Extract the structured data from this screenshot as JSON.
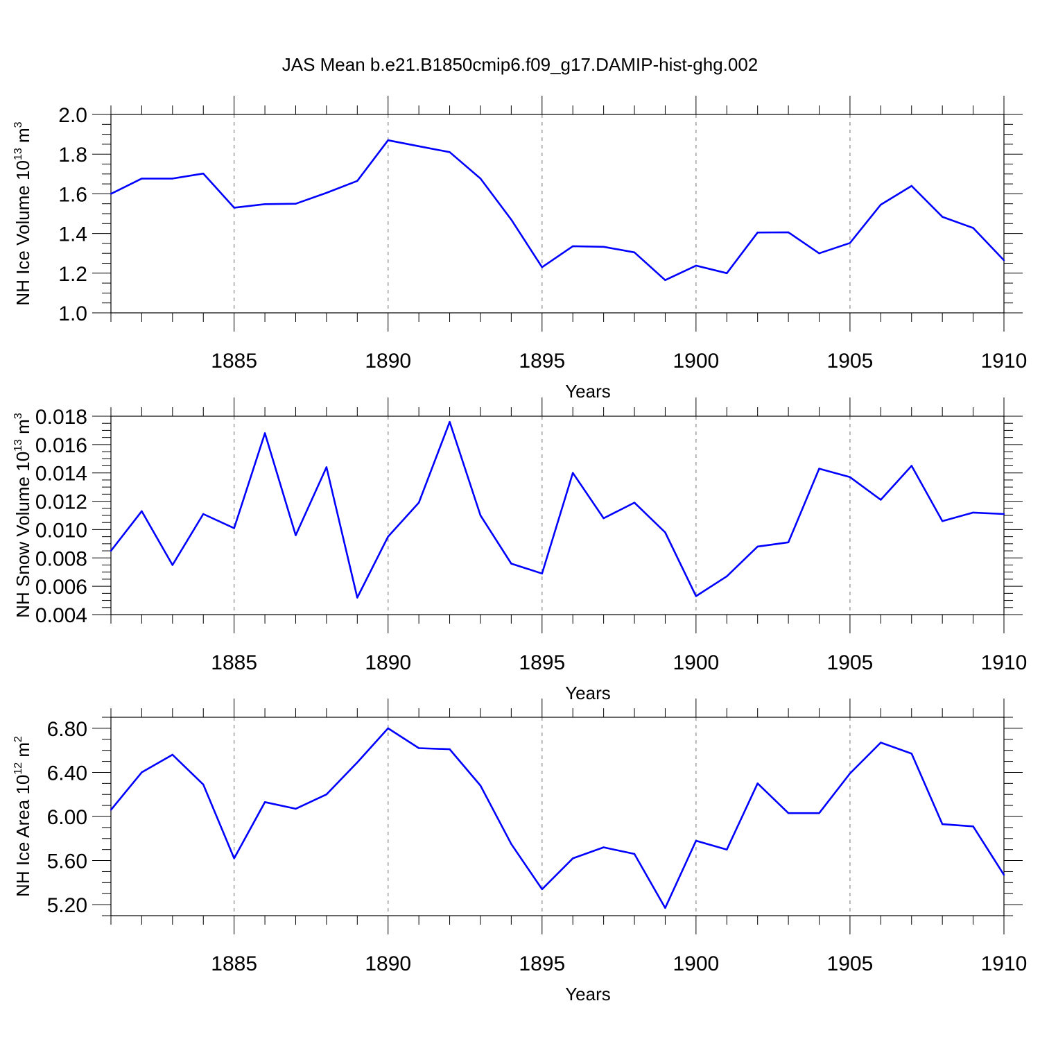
{
  "title": "JAS Mean b.e21.B1850cmip6.f09_g17.DAMIP-hist-ghg.002",
  "line_color": "#0000ff",
  "grid_color": "#a0a0a0",
  "chart_data": [
    {
      "type": "line",
      "ylabel": {
        "main": "NH Ice Volume 10",
        "exp": "13",
        "unit": " m",
        "unit_exp": "3"
      },
      "xlabel": "Years",
      "xlim": [
        1881,
        1910
      ],
      "ylim": [
        1.0,
        2.0
      ],
      "yticks": [
        1.0,
        1.2,
        1.4,
        1.6,
        1.8,
        2.0
      ],
      "ytick_labels": [
        "1.0",
        "1.2",
        "1.4",
        "1.6",
        "1.8",
        "2.0"
      ],
      "yminor_step": 0.05,
      "xticks": [
        1885,
        1890,
        1895,
        1900,
        1905,
        1910
      ],
      "xtick_labels": [
        "1885",
        "1890",
        "1895",
        "1900",
        "1905",
        "1910"
      ],
      "x": [
        1881,
        1882,
        1883,
        1884,
        1885,
        1886,
        1887,
        1888,
        1889,
        1890,
        1891,
        1892,
        1893,
        1894,
        1895,
        1896,
        1897,
        1898,
        1899,
        1900,
        1901,
        1902,
        1903,
        1904,
        1905,
        1906,
        1907,
        1908,
        1909,
        1910
      ],
      "series": [
        {
          "name": "NH Ice Volume",
          "values": [
            1.6,
            1.677,
            1.677,
            1.702,
            1.53,
            1.548,
            1.55,
            1.605,
            1.665,
            1.87,
            1.84,
            1.81,
            1.677,
            1.47,
            1.23,
            1.336,
            1.333,
            1.305,
            1.165,
            1.238,
            1.2,
            1.405,
            1.406,
            1.3,
            1.352,
            1.545,
            1.64,
            1.484,
            1.428,
            1.265
          ]
        }
      ]
    },
    {
      "type": "line",
      "ylabel": {
        "main": "NH Snow Volume 10",
        "exp": "13",
        "unit": " m",
        "unit_exp": "3"
      },
      "xlabel": "Years",
      "xlim": [
        1881,
        1910
      ],
      "ylim": [
        0.004,
        0.018
      ],
      "yticks": [
        0.004,
        0.006,
        0.008,
        0.01,
        0.012,
        0.014,
        0.016,
        0.018
      ],
      "ytick_labels": [
        "0.004",
        "0.006",
        "0.008",
        "0.010",
        "0.012",
        "0.014",
        "0.016",
        "0.018"
      ],
      "yminor_step": 0.0005,
      "xticks": [
        1885,
        1890,
        1895,
        1900,
        1905,
        1910
      ],
      "xtick_labels": [
        "1885",
        "1890",
        "1895",
        "1900",
        "1905",
        "1910"
      ],
      "x": [
        1881,
        1882,
        1883,
        1884,
        1885,
        1886,
        1887,
        1888,
        1889,
        1890,
        1891,
        1892,
        1893,
        1894,
        1895,
        1896,
        1897,
        1898,
        1899,
        1900,
        1901,
        1902,
        1903,
        1904,
        1905,
        1906,
        1907,
        1908,
        1909,
        1910
      ],
      "series": [
        {
          "name": "NH Snow Volume",
          "values": [
            0.0085,
            0.0113,
            0.0075,
            0.0111,
            0.0101,
            0.0168,
            0.0096,
            0.0144,
            0.0052,
            0.0095,
            0.0119,
            0.0176,
            0.011,
            0.0076,
            0.0069,
            0.014,
            0.0108,
            0.0119,
            0.0098,
            0.0053,
            0.0067,
            0.0088,
            0.0091,
            0.0143,
            0.0137,
            0.0121,
            0.0145,
            0.0106,
            0.0112,
            0.0111
          ]
        }
      ]
    },
    {
      "type": "line",
      "ylabel": {
        "main": "NH Ice Area 10",
        "exp": "12",
        "unit": " m",
        "unit_exp": "2"
      },
      "xlabel": "Years",
      "xlim": [
        1881,
        1910
      ],
      "ylim": [
        5.1,
        6.9
      ],
      "yticks": [
        5.2,
        5.6,
        6.0,
        6.4,
        6.8
      ],
      "ytick_labels": [
        "5.20",
        "5.60",
        "6.00",
        "6.40",
        "6.80"
      ],
      "yminor_step": 0.1,
      "xticks": [
        1885,
        1890,
        1895,
        1900,
        1905,
        1910
      ],
      "xtick_labels": [
        "1885",
        "1890",
        "1895",
        "1900",
        "1905",
        "1910"
      ],
      "x": [
        1881,
        1882,
        1883,
        1884,
        1885,
        1886,
        1887,
        1888,
        1889,
        1890,
        1891,
        1892,
        1893,
        1894,
        1895,
        1896,
        1897,
        1898,
        1899,
        1900,
        1901,
        1902,
        1903,
        1904,
        1905,
        1906,
        1907,
        1908,
        1909,
        1910
      ],
      "series": [
        {
          "name": "NH Ice Area",
          "values": [
            6.06,
            6.4,
            6.56,
            6.29,
            5.62,
            6.13,
            6.07,
            6.2,
            6.49,
            6.8,
            6.62,
            6.61,
            6.28,
            5.75,
            5.34,
            5.62,
            5.72,
            5.66,
            5.17,
            5.78,
            5.7,
            6.3,
            6.03,
            6.03,
            6.39,
            6.67,
            6.57,
            5.93,
            5.91,
            5.47
          ]
        }
      ]
    }
  ]
}
